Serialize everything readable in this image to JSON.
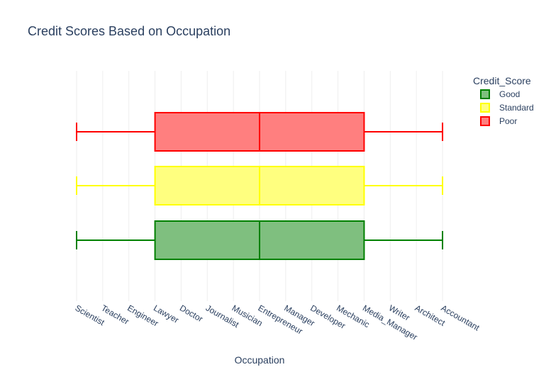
{
  "chart_data": {
    "type": "box",
    "orientation": "horizontal",
    "title": "Credit Scores Based on Occupation",
    "xlabel": "Occupation",
    "ylabel": "",
    "categories": [
      "Scientist",
      "Teacher",
      "Engineer",
      "Lawyer",
      "Doctor",
      "Journalist",
      "Musician",
      "Entrepreneur",
      "Manager",
      "Developer",
      "Mechanic",
      "Media_Manager",
      "Writer",
      "Architect",
      "Accountant"
    ],
    "legend": {
      "title": "Credit_Score",
      "placement": "top-right"
    },
    "grid": true,
    "series": [
      {
        "name": "Good",
        "color": "#008000",
        "fill": "#7fbf7f",
        "min": "Scientist",
        "q1": "Lawyer",
        "median": "Entrepreneur",
        "q3": "Media_Manager",
        "max": "Accountant"
      },
      {
        "name": "Standard",
        "color": "#ffff00",
        "fill": "#ffff7f",
        "min": "Scientist",
        "q1": "Lawyer",
        "median": "Entrepreneur",
        "q3": "Media_Manager",
        "max": "Accountant"
      },
      {
        "name": "Poor",
        "color": "#ff0000",
        "fill": "#ff7f7f",
        "min": "Scientist",
        "q1": "Lawyer",
        "median": "Entrepreneur",
        "q3": "Media_Manager",
        "max": "Accountant"
      }
    ]
  }
}
